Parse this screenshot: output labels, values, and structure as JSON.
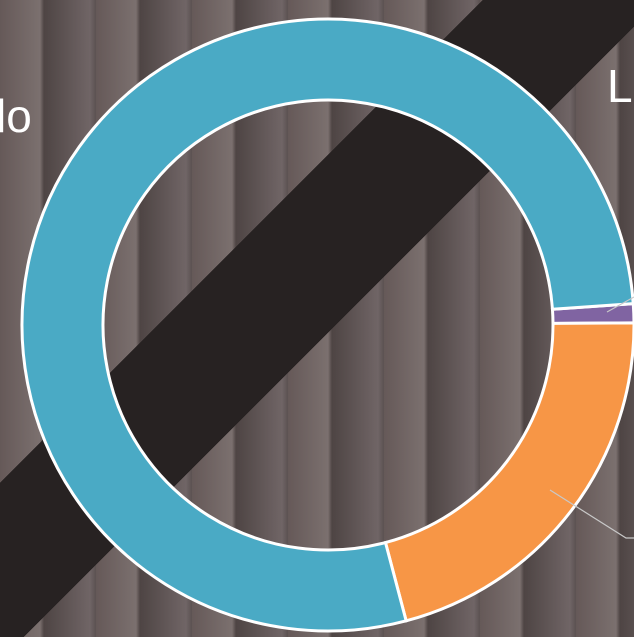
{
  "chart_data": {
    "type": "donut",
    "values": [
      1,
      21,
      78
    ],
    "colors": [
      "#8064a2",
      "#f79646",
      "#4aaac5"
    ],
    "annotations": [
      "lo",
      "L"
    ]
  }
}
